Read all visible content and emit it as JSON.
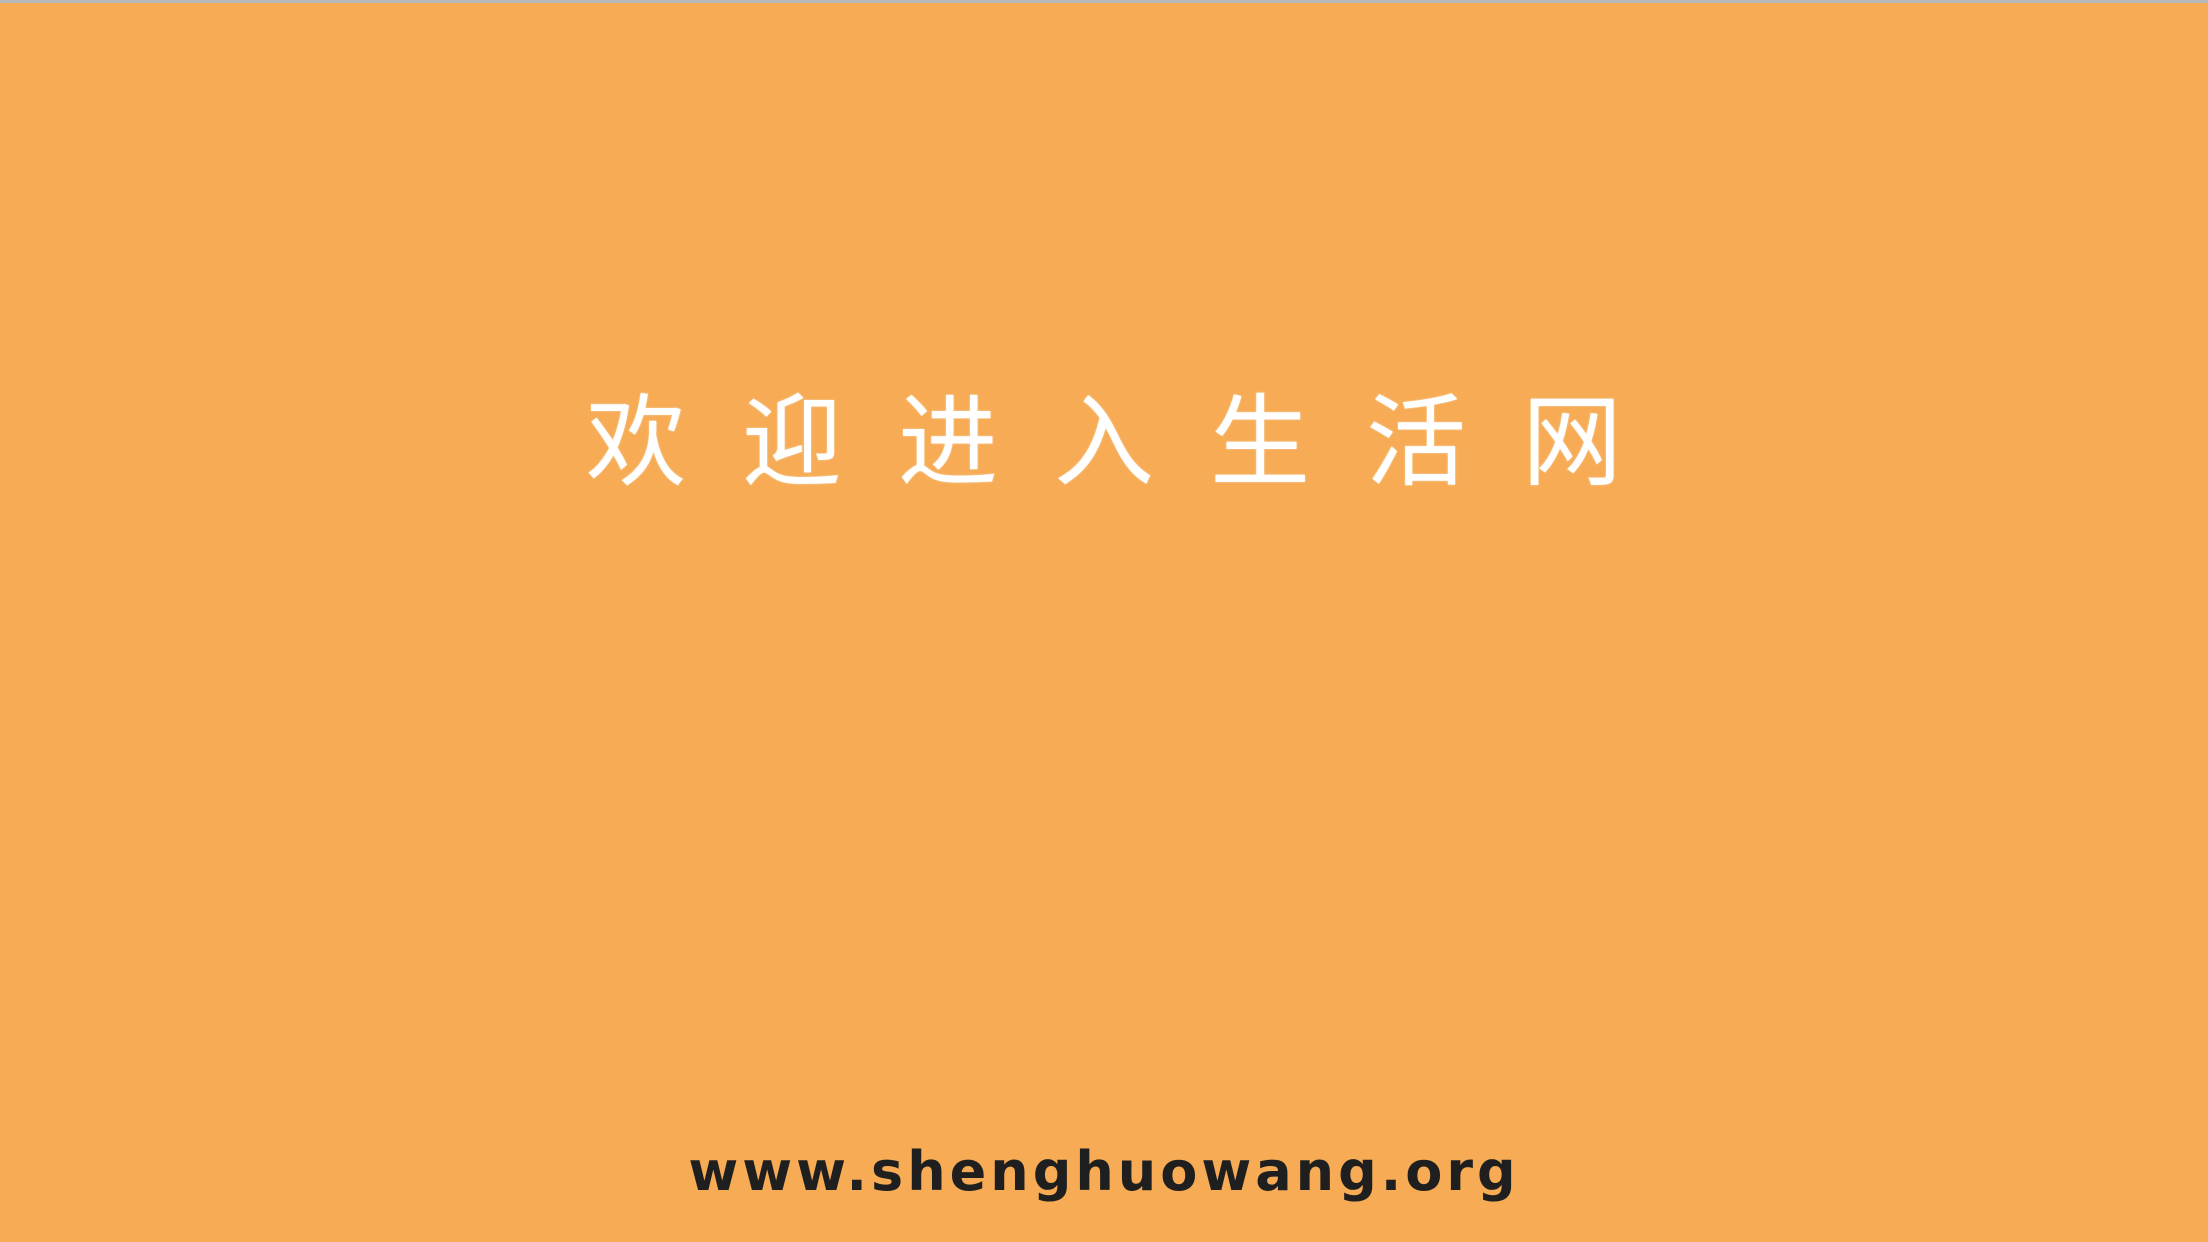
{
  "splash": {
    "welcome_text": "欢迎进入生活网",
    "url_text": "www.shenghuowang.org"
  },
  "colors": {
    "background": "#f6ab54",
    "welcome_text": "#ffffff",
    "url_text": "#1f1f1f"
  }
}
